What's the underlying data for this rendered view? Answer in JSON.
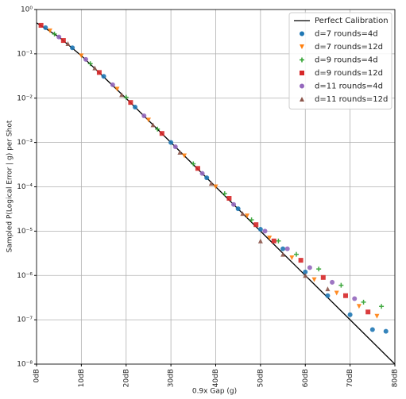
{
  "chart_data": {
    "type": "scatter",
    "xlabel": "0.9x Gap (g)",
    "ylabel": "Sampled P(Logical Error | g) per Shot",
    "xlim": [
      0,
      80
    ],
    "xticks": [
      {
        "value": 0,
        "label": "0dB"
      },
      {
        "value": 10,
        "label": "10dB"
      },
      {
        "value": 20,
        "label": "20dB"
      },
      {
        "value": 30,
        "label": "30dB"
      },
      {
        "value": 40,
        "label": "40dB"
      },
      {
        "value": 50,
        "label": "50dB"
      },
      {
        "value": 60,
        "label": "60dB"
      },
      {
        "value": 70,
        "label": "70dB"
      },
      {
        "value": 80,
        "label": "80dB"
      }
    ],
    "ylim": [
      1e-08,
      1
    ],
    "yticks": [
      {
        "value": 1e-08,
        "label": "10⁻⁸"
      },
      {
        "value": 1e-07,
        "label": "10⁻⁷"
      },
      {
        "value": 1e-06,
        "label": "10⁻⁶"
      },
      {
        "value": 1e-05,
        "label": "10⁻⁵"
      },
      {
        "value": 0.0001,
        "label": "10⁻⁴"
      },
      {
        "value": 0.001,
        "label": "10⁻³"
      },
      {
        "value": 0.01,
        "label": "10⁻²"
      },
      {
        "value": 0.1,
        "label": "10⁻¹"
      },
      {
        "value": 1,
        "label": "10⁰"
      }
    ],
    "ylog": true,
    "grid": true,
    "legend": "upper right",
    "line": {
      "name": "Perfect Calibration",
      "color": "#000000",
      "x": [
        0,
        5,
        10,
        20,
        30,
        40,
        50,
        60,
        70,
        80
      ],
      "values": [
        0.5,
        0.24,
        0.0909,
        0.0099,
        0.000999,
        0.0001,
        1e-05,
        1e-06,
        1e-07,
        1e-08
      ]
    },
    "series": [
      {
        "name": "d=7 rounds=4d",
        "color": "#1f77b4",
        "marker": "o",
        "x": [
          2,
          8,
          15,
          22,
          30,
          38,
          45,
          50,
          55,
          60,
          65,
          70,
          75,
          78
        ],
        "values": [
          0.39,
          0.137,
          0.031,
          0.0063,
          0.001,
          0.00016,
          3.2e-05,
          1.1e-05,
          4e-06,
          1.2e-06,
          3.5e-07,
          1.3e-07,
          6e-08,
          5.5e-08
        ]
      },
      {
        "name": "d=7 rounds=12d",
        "color": "#ff7f0e",
        "marker": "v",
        "x": [
          3,
          10,
          18,
          25,
          33,
          40,
          47,
          52,
          57,
          62,
          67,
          72,
          76
        ],
        "values": [
          0.33,
          0.09,
          0.016,
          0.0032,
          0.0005,
          0.0001,
          2.2e-05,
          7e-06,
          2.5e-06,
          8e-07,
          4e-07,
          2e-07,
          1.2e-07
        ]
      },
      {
        "name": "d=9 rounds=4d",
        "color": "#2ca02c",
        "marker": "+",
        "x": [
          4,
          12,
          20,
          27,
          35,
          42,
          48,
          54,
          58,
          63,
          68,
          73,
          77
        ],
        "values": [
          0.28,
          0.06,
          0.0105,
          0.002,
          0.00033,
          7e-05,
          1.8e-05,
          6e-06,
          3e-06,
          1.4e-06,
          6e-07,
          2.5e-07,
          2e-07
        ]
      },
      {
        "name": "d=9 rounds=12d",
        "color": "#d62728",
        "marker": "s",
        "x": [
          1,
          6,
          14,
          21,
          28,
          36,
          43,
          49,
          53,
          59,
          64,
          69,
          74
        ],
        "values": [
          0.44,
          0.2,
          0.038,
          0.008,
          0.0016,
          0.00026,
          5.5e-05,
          1.4e-05,
          6e-06,
          2.2e-06,
          9e-07,
          3.5e-07,
          1.5e-07
        ]
      },
      {
        "name": "d=11 rounds=4d",
        "color": "#9467bd",
        "marker": "o",
        "x": [
          5,
          11,
          17,
          24,
          31,
          37,
          44,
          51,
          56,
          61,
          66,
          71
        ],
        "values": [
          0.24,
          0.075,
          0.02,
          0.004,
          0.0008,
          0.0002,
          4e-05,
          1e-05,
          4e-06,
          1.5e-06,
          7e-07,
          3e-07
        ]
      },
      {
        "name": "d=11 rounds=12d",
        "color": "#8c564b",
        "marker": "^",
        "x": [
          7,
          13,
          19,
          26,
          32,
          39,
          46,
          50,
          55,
          60,
          65
        ],
        "values": [
          0.17,
          0.048,
          0.012,
          0.0025,
          0.0006,
          0.00012,
          2.5e-05,
          6e-06,
          3e-06,
          1e-06,
          5e-07
        ]
      }
    ]
  }
}
